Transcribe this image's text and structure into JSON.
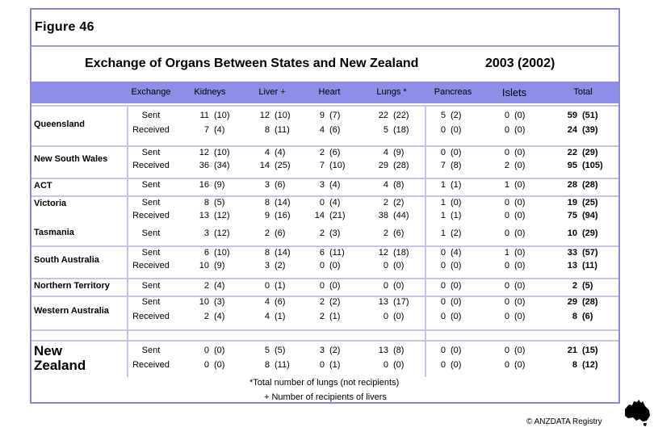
{
  "figure_label": "Figure 46",
  "title": "Exchange of Organs Between States and New Zealand",
  "year_label": "2003 (2002)",
  "columns": [
    "Exchange",
    "Kidneys",
    "Liver +",
    "Heart",
    "Lungs *",
    "Pancreas",
    "Islets",
    "Total"
  ],
  "rows": [
    {
      "state": "Queensland",
      "lines": [
        {
          "ex": "Sent",
          "k": [
            "11",
            "(10)"
          ],
          "l": [
            "12",
            "(10)"
          ],
          "h": [
            "9",
            "(7)"
          ],
          "lu": [
            "22",
            "(22)"
          ],
          "p": [
            "5",
            "(2)"
          ],
          "i": [
            "0",
            "(0)"
          ],
          "t": [
            "59",
            "(51)"
          ]
        },
        {
          "ex": "Received",
          "k": [
            "7",
            "(4)"
          ],
          "l": [
            "8",
            "(11)"
          ],
          "h": [
            "4",
            "(6)"
          ],
          "lu": [
            "5",
            "(18)"
          ],
          "p": [
            "0",
            "(0)"
          ],
          "i": [
            "0",
            "(0)"
          ],
          "t": [
            "24",
            "(39)"
          ]
        }
      ]
    },
    {
      "state": "New South Wales",
      "lines": [
        {
          "ex": "Sent",
          "k": [
            "12",
            "(10)"
          ],
          "l": [
            "4",
            "(4)"
          ],
          "h": [
            "2",
            "(6)"
          ],
          "lu": [
            "4",
            "(9)"
          ],
          "p": [
            "0",
            "(0)"
          ],
          "i": [
            "0",
            "(0)"
          ],
          "t": [
            "22",
            "(29)"
          ]
        },
        {
          "ex": "Received",
          "k": [
            "36",
            "(34)"
          ],
          "l": [
            "14",
            "(25)"
          ],
          "h": [
            "7",
            "(10)"
          ],
          "lu": [
            "29",
            "(28)"
          ],
          "p": [
            "7",
            "(8)"
          ],
          "i": [
            "2",
            "(0)"
          ],
          "t": [
            "95",
            "(105)"
          ]
        }
      ]
    },
    {
      "state": "ACT",
      "lines": [
        {
          "ex": "Sent",
          "k": [
            "16",
            "(9)"
          ],
          "l": [
            "3",
            "(6)"
          ],
          "h": [
            "3",
            "(4)"
          ],
          "lu": [
            "4",
            "(8)"
          ],
          "p": [
            "1",
            "(1)"
          ],
          "i": [
            "1",
            "(0)"
          ],
          "t": [
            "28",
            "(28)"
          ]
        }
      ]
    },
    {
      "state": "Victoria",
      "lines": [
        {
          "ex": "Sent",
          "k": [
            "8",
            "(5)"
          ],
          "l": [
            "8",
            "(14)"
          ],
          "h": [
            "0",
            "(4)"
          ],
          "lu": [
            "2",
            "(2)"
          ],
          "p": [
            "1",
            "(0)"
          ],
          "i": [
            "0",
            "(0)"
          ],
          "t": [
            "19",
            "(25)"
          ]
        },
        {
          "ex": "Received",
          "k": [
            "13",
            "(12)"
          ],
          "l": [
            "9",
            "(16)"
          ],
          "h": [
            "14",
            "(21)"
          ],
          "lu": [
            "38",
            "(44)"
          ],
          "p": [
            "1",
            "(1)"
          ],
          "i": [
            "0",
            "(0)"
          ],
          "t": [
            "75",
            "(94)"
          ]
        }
      ]
    },
    {
      "state": "Tasmania",
      "lines": [
        {
          "ex": "Sent",
          "k": [
            "3",
            "(12)"
          ],
          "l": [
            "2",
            "(6)"
          ],
          "h": [
            "2",
            "(3)"
          ],
          "lu": [
            "2",
            "(6)"
          ],
          "p": [
            "1",
            "(2)"
          ],
          "i": [
            "0",
            "(0)"
          ],
          "t": [
            "10",
            "(29)"
          ]
        }
      ]
    },
    {
      "state": "South Australia",
      "lines": [
        {
          "ex": "Sent",
          "k": [
            "6",
            "(10)"
          ],
          "l": [
            "8",
            "(14)"
          ],
          "h": [
            "6",
            "(11)"
          ],
          "lu": [
            "12",
            "(18)"
          ],
          "p": [
            "0",
            "(4)"
          ],
          "i": [
            "1",
            "(0)"
          ],
          "t": [
            "33",
            "(57)"
          ]
        },
        {
          "ex": "Received",
          "k": [
            "10",
            "(9)"
          ],
          "l": [
            "3",
            "(2)"
          ],
          "h": [
            "0",
            "(0)"
          ],
          "lu": [
            "0",
            "(0)"
          ],
          "p": [
            "0",
            "(0)"
          ],
          "i": [
            "0",
            "(0)"
          ],
          "t": [
            "13",
            "(11)"
          ]
        }
      ]
    },
    {
      "state": "Northern Territory",
      "lines": [
        {
          "ex": "Sent",
          "k": [
            "2",
            "(4)"
          ],
          "l": [
            "0",
            "(1)"
          ],
          "h": [
            "0",
            "(0)"
          ],
          "lu": [
            "0",
            "(0)"
          ],
          "p": [
            "0",
            "(0)"
          ],
          "i": [
            "0",
            "(0)"
          ],
          "t": [
            "2",
            "(5)"
          ]
        }
      ]
    },
    {
      "state": "Western Australia",
      "lines": [
        {
          "ex": "Sent",
          "k": [
            "10",
            "(3)"
          ],
          "l": [
            "4",
            "(6)"
          ],
          "h": [
            "2",
            "(2)"
          ],
          "lu": [
            "13",
            "(17)"
          ],
          "p": [
            "0",
            "(0)"
          ],
          "i": [
            "0",
            "(0)"
          ],
          "t": [
            "29",
            "(28)"
          ]
        },
        {
          "ex": "Received",
          "k": [
            "2",
            "(4)"
          ],
          "l": [
            "4",
            "(1)"
          ],
          "h": [
            "2",
            "(1)"
          ],
          "lu": [
            "0",
            "(0)"
          ],
          "p": [
            "0",
            "(0)"
          ],
          "i": [
            "0",
            "(0)"
          ],
          "t": [
            "8",
            "(6)"
          ]
        }
      ]
    },
    {
      "state": "New Zealand",
      "lines": [
        {
          "ex": "Sent",
          "k": [
            "0",
            "(0)"
          ],
          "l": [
            "5",
            "(5)"
          ],
          "h": [
            "3",
            "(2)"
          ],
          "lu": [
            "13",
            "(8)"
          ],
          "p": [
            "0",
            "(0)"
          ],
          "i": [
            "0",
            "(0)"
          ],
          "t": [
            "21",
            "(15)"
          ]
        },
        {
          "ex": "Received",
          "k": [
            "0",
            "(0)"
          ],
          "l": [
            "8",
            "(11)"
          ],
          "h": [
            "0",
            "(1)"
          ],
          "lu": [
            "0",
            "(0)"
          ],
          "p": [
            "0",
            "(0)"
          ],
          "i": [
            "0",
            "(0)"
          ],
          "t": [
            "8",
            "(12)"
          ]
        }
      ]
    }
  ],
  "footnotes": [
    "*Total number of lungs (not recipients)",
    "+ Number of recipients of livers"
  ],
  "copyright": "© ANZDATA Registry",
  "colors": {
    "border": "#8a8ad0",
    "header_band": "#8e8ee8",
    "separator": "#c4c4ec"
  },
  "map_icon": "australia-map-icon"
}
